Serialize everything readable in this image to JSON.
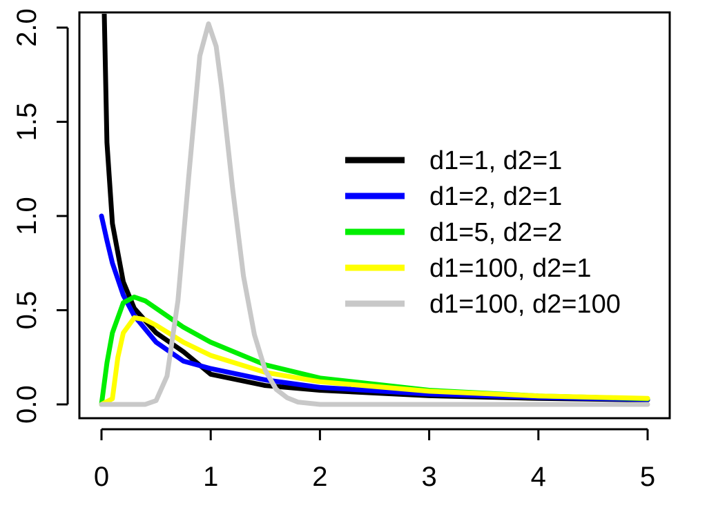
{
  "chart_data": {
    "type": "line",
    "title": "",
    "xlabel": "",
    "ylabel": "",
    "xlim": [
      0,
      5
    ],
    "ylim": [
      0,
      2
    ],
    "x_ticks": [
      "0",
      "1",
      "2",
      "3",
      "4",
      "5"
    ],
    "y_ticks": [
      "0.0",
      "0.5",
      "1.0",
      "1.5",
      "2.0"
    ],
    "grid": false,
    "legend_position": "right",
    "series": [
      {
        "name": "d1=1, d2=1",
        "color": "#000000",
        "x": [
          0.01,
          0.02,
          0.05,
          0.1,
          0.2,
          0.3,
          0.5,
          0.75,
          1,
          1.5,
          2,
          3,
          4,
          5
        ],
        "y": [
          3.15,
          2.22,
          1.39,
          0.96,
          0.65,
          0.51,
          0.38,
          0.28,
          0.16,
          0.1,
          0.075,
          0.046,
          0.032,
          0.024
        ]
      },
      {
        "name": "d1=2, d2=1",
        "color": "#0000ff",
        "x": [
          0,
          0.05,
          0.1,
          0.2,
          0.3,
          0.5,
          0.75,
          1,
          1.5,
          2,
          3,
          4,
          5
        ],
        "y": [
          1.0,
          0.87,
          0.75,
          0.58,
          0.47,
          0.33,
          0.23,
          0.19,
          0.13,
          0.09,
          0.055,
          0.037,
          0.026
        ]
      },
      {
        "name": "d1=5, d2=2",
        "color": "#00ee00",
        "x": [
          0,
          0.05,
          0.1,
          0.2,
          0.3,
          0.4,
          0.5,
          0.75,
          1,
          1.5,
          2,
          3,
          4,
          5
        ],
        "y": [
          0,
          0.22,
          0.38,
          0.54,
          0.57,
          0.55,
          0.51,
          0.41,
          0.33,
          0.21,
          0.14,
          0.075,
          0.045,
          0.03
        ]
      },
      {
        "name": "d1=100, d2=1",
        "color": "#ffff00",
        "x": [
          0,
          0.1,
          0.15,
          0.2,
          0.3,
          0.4,
          0.5,
          0.75,
          1,
          1.5,
          2,
          3,
          4,
          5
        ],
        "y": [
          0,
          0.03,
          0.25,
          0.38,
          0.46,
          0.45,
          0.42,
          0.33,
          0.26,
          0.17,
          0.12,
          0.07,
          0.045,
          0.032
        ]
      },
      {
        "name": "d1=100, d2=100",
        "color": "#c8c8c8",
        "x": [
          0,
          0.4,
          0.5,
          0.6,
          0.7,
          0.8,
          0.9,
          0.98,
          1.05,
          1.1,
          1.2,
          1.3,
          1.4,
          1.5,
          1.6,
          1.7,
          1.8,
          2,
          2.5,
          5
        ],
        "y": [
          0,
          0,
          0.02,
          0.15,
          0.55,
          1.22,
          1.85,
          2.02,
          1.9,
          1.68,
          1.15,
          0.68,
          0.37,
          0.18,
          0.08,
          0.035,
          0.012,
          0,
          0,
          0
        ]
      }
    ]
  }
}
